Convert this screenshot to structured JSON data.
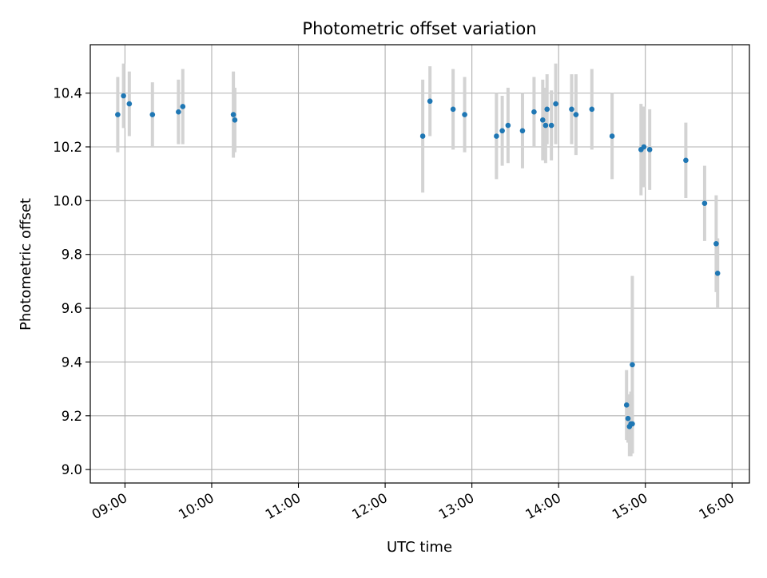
{
  "chart_data": {
    "type": "scatter",
    "title": "Photometric offset variation",
    "xlabel": "UTC time",
    "ylabel": "Photometric offset",
    "x_ticks": [
      "09:00",
      "10:00",
      "11:00",
      "12:00",
      "13:00",
      "14:00",
      "15:00",
      "16:00"
    ],
    "y_ticks": [
      "9.0",
      "9.2",
      "9.4",
      "9.6",
      "9.8",
      "10.0",
      "10.2",
      "10.4"
    ],
    "xlim": [
      "08:36",
      "16:12"
    ],
    "ylim": [
      8.95,
      10.58
    ],
    "grid": true,
    "colors": {
      "point": "#1f77b4",
      "errorbar": "#d3d3d3",
      "grid": "#b0b0b0"
    },
    "series": [
      {
        "points": [
          {
            "x": "08:55",
            "y": 10.32,
            "err": 0.14
          },
          {
            "x": "08:59",
            "y": 10.39,
            "err": 0.12
          },
          {
            "x": "09:03",
            "y": 10.36,
            "err": 0.12
          },
          {
            "x": "09:19",
            "y": 10.32,
            "err": 0.12
          },
          {
            "x": "09:37",
            "y": 10.33,
            "err": 0.12
          },
          {
            "x": "09:40",
            "y": 10.35,
            "err": 0.14
          },
          {
            "x": "10:15",
            "y": 10.32,
            "err": 0.16
          },
          {
            "x": "10:16",
            "y": 10.3,
            "err": 0.12
          },
          {
            "x": "12:26",
            "y": 10.24,
            "err": 0.21
          },
          {
            "x": "12:31",
            "y": 10.37,
            "err": 0.13
          },
          {
            "x": "12:47",
            "y": 10.34,
            "err": 0.15
          },
          {
            "x": "12:55",
            "y": 10.32,
            "err": 0.14
          },
          {
            "x": "13:17",
            "y": 10.24,
            "err": 0.16
          },
          {
            "x": "13:21",
            "y": 10.26,
            "err": 0.13
          },
          {
            "x": "13:25",
            "y": 10.28,
            "err": 0.14
          },
          {
            "x": "13:35",
            "y": 10.26,
            "err": 0.14
          },
          {
            "x": "13:43",
            "y": 10.33,
            "err": 0.13
          },
          {
            "x": "13:49",
            "y": 10.3,
            "err": 0.15
          },
          {
            "x": "13:51",
            "y": 10.28,
            "err": 0.14
          },
          {
            "x": "13:52",
            "y": 10.34,
            "err": 0.13
          },
          {
            "x": "13:55",
            "y": 10.28,
            "err": 0.13
          },
          {
            "x": "13:58",
            "y": 10.36,
            "err": 0.15
          },
          {
            "x": "14:09",
            "y": 10.34,
            "err": 0.13
          },
          {
            "x": "14:12",
            "y": 10.32,
            "err": 0.15
          },
          {
            "x": "14:23",
            "y": 10.34,
            "err": 0.15
          },
          {
            "x": "14:37",
            "y": 10.24,
            "err": 0.16
          },
          {
            "x": "14:47",
            "y": 9.24,
            "err": 0.13
          },
          {
            "x": "14:48",
            "y": 9.19,
            "err": 0.09
          },
          {
            "x": "14:49",
            "y": 9.16,
            "err": 0.11
          },
          {
            "x": "14:50",
            "y": 9.17,
            "err": 0.12
          },
          {
            "x": "14:51",
            "y": 9.39,
            "err": 0.33
          },
          {
            "x": "14:51",
            "y": 9.17,
            "err": 0.11
          },
          {
            "x": "14:57",
            "y": 10.19,
            "err": 0.17
          },
          {
            "x": "14:59",
            "y": 10.2,
            "err": 0.15
          },
          {
            "x": "15:03",
            "y": 10.19,
            "err": 0.15
          },
          {
            "x": "15:28",
            "y": 10.15,
            "err": 0.14
          },
          {
            "x": "15:41",
            "y": 9.99,
            "err": 0.14
          },
          {
            "x": "15:49",
            "y": 9.84,
            "err": 0.18
          },
          {
            "x": "15:50",
            "y": 9.73,
            "err": 0.13
          }
        ]
      }
    ]
  }
}
